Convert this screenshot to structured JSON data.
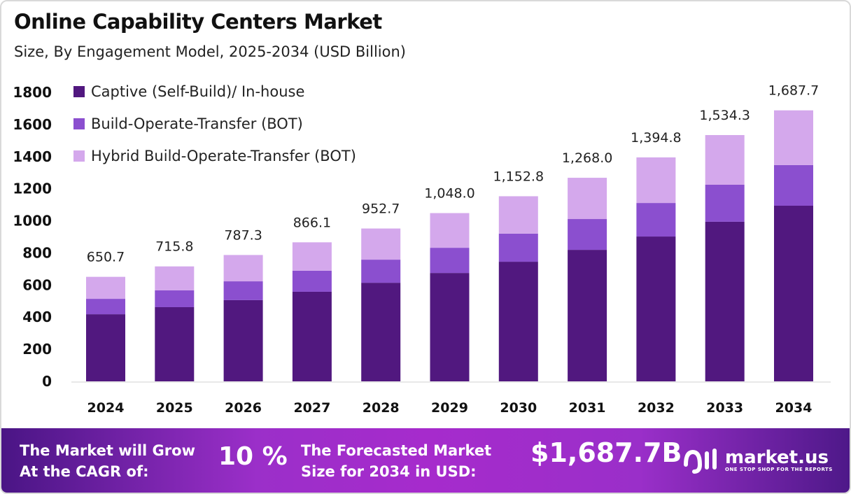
{
  "chart_data": {
    "type": "bar",
    "stacked": true,
    "title": "Online Capability Centers Market",
    "subtitle": "Size, By Engagement Model, 2025-2034 (USD Billion)",
    "categories": [
      "2024",
      "2025",
      "2026",
      "2027",
      "2028",
      "2029",
      "2030",
      "2031",
      "2032",
      "2033",
      "2034"
    ],
    "series": [
      {
        "name": "Captive (Self-Build)/ In-house",
        "color": "#51187f",
        "values": [
          418,
          462,
          506,
          558,
          614,
          675,
          745,
          819,
          902,
          994,
          1094
        ]
      },
      {
        "name": "Build-Operate-Transfer (BOT)",
        "color": "#8b4fcf",
        "values": [
          96,
          105,
          117,
          131,
          144,
          157,
          175,
          192,
          209,
          231,
          253
        ]
      },
      {
        "name": "Hybrid Build-Operate-Transfer (BOT)",
        "color": "#d4a8ec",
        "values": [
          137,
          149,
          164,
          177,
          194,
          216,
          233,
          257,
          284,
          309,
          341
        ]
      }
    ],
    "totals": [
      "650.7",
      "715.8",
      "787.3",
      "866.1",
      "952.7",
      "1,048.0",
      "1,152.8",
      "1,268.0",
      "1,394.8",
      "1,534.3",
      "1,687.7"
    ],
    "yticks": [
      "0",
      "200",
      "400",
      "600",
      "800",
      "1000",
      "1200",
      "1400",
      "1600",
      "1800"
    ],
    "ylim": [
      0,
      1800
    ],
    "grid": false,
    "legend": "top-left"
  },
  "footer": {
    "cagr_label_1": "The Market will Grow",
    "cagr_label_2": "At the CAGR of:",
    "cagr_value": "10 %",
    "forecast_label_1": "The Forecasted Market",
    "forecast_label_2": "Size for 2034 in USD:",
    "forecast_value": "$1,687.7B",
    "brand": "market.us",
    "brand_tagline": "ONE STOP SHOP FOR THE REPORTS"
  }
}
